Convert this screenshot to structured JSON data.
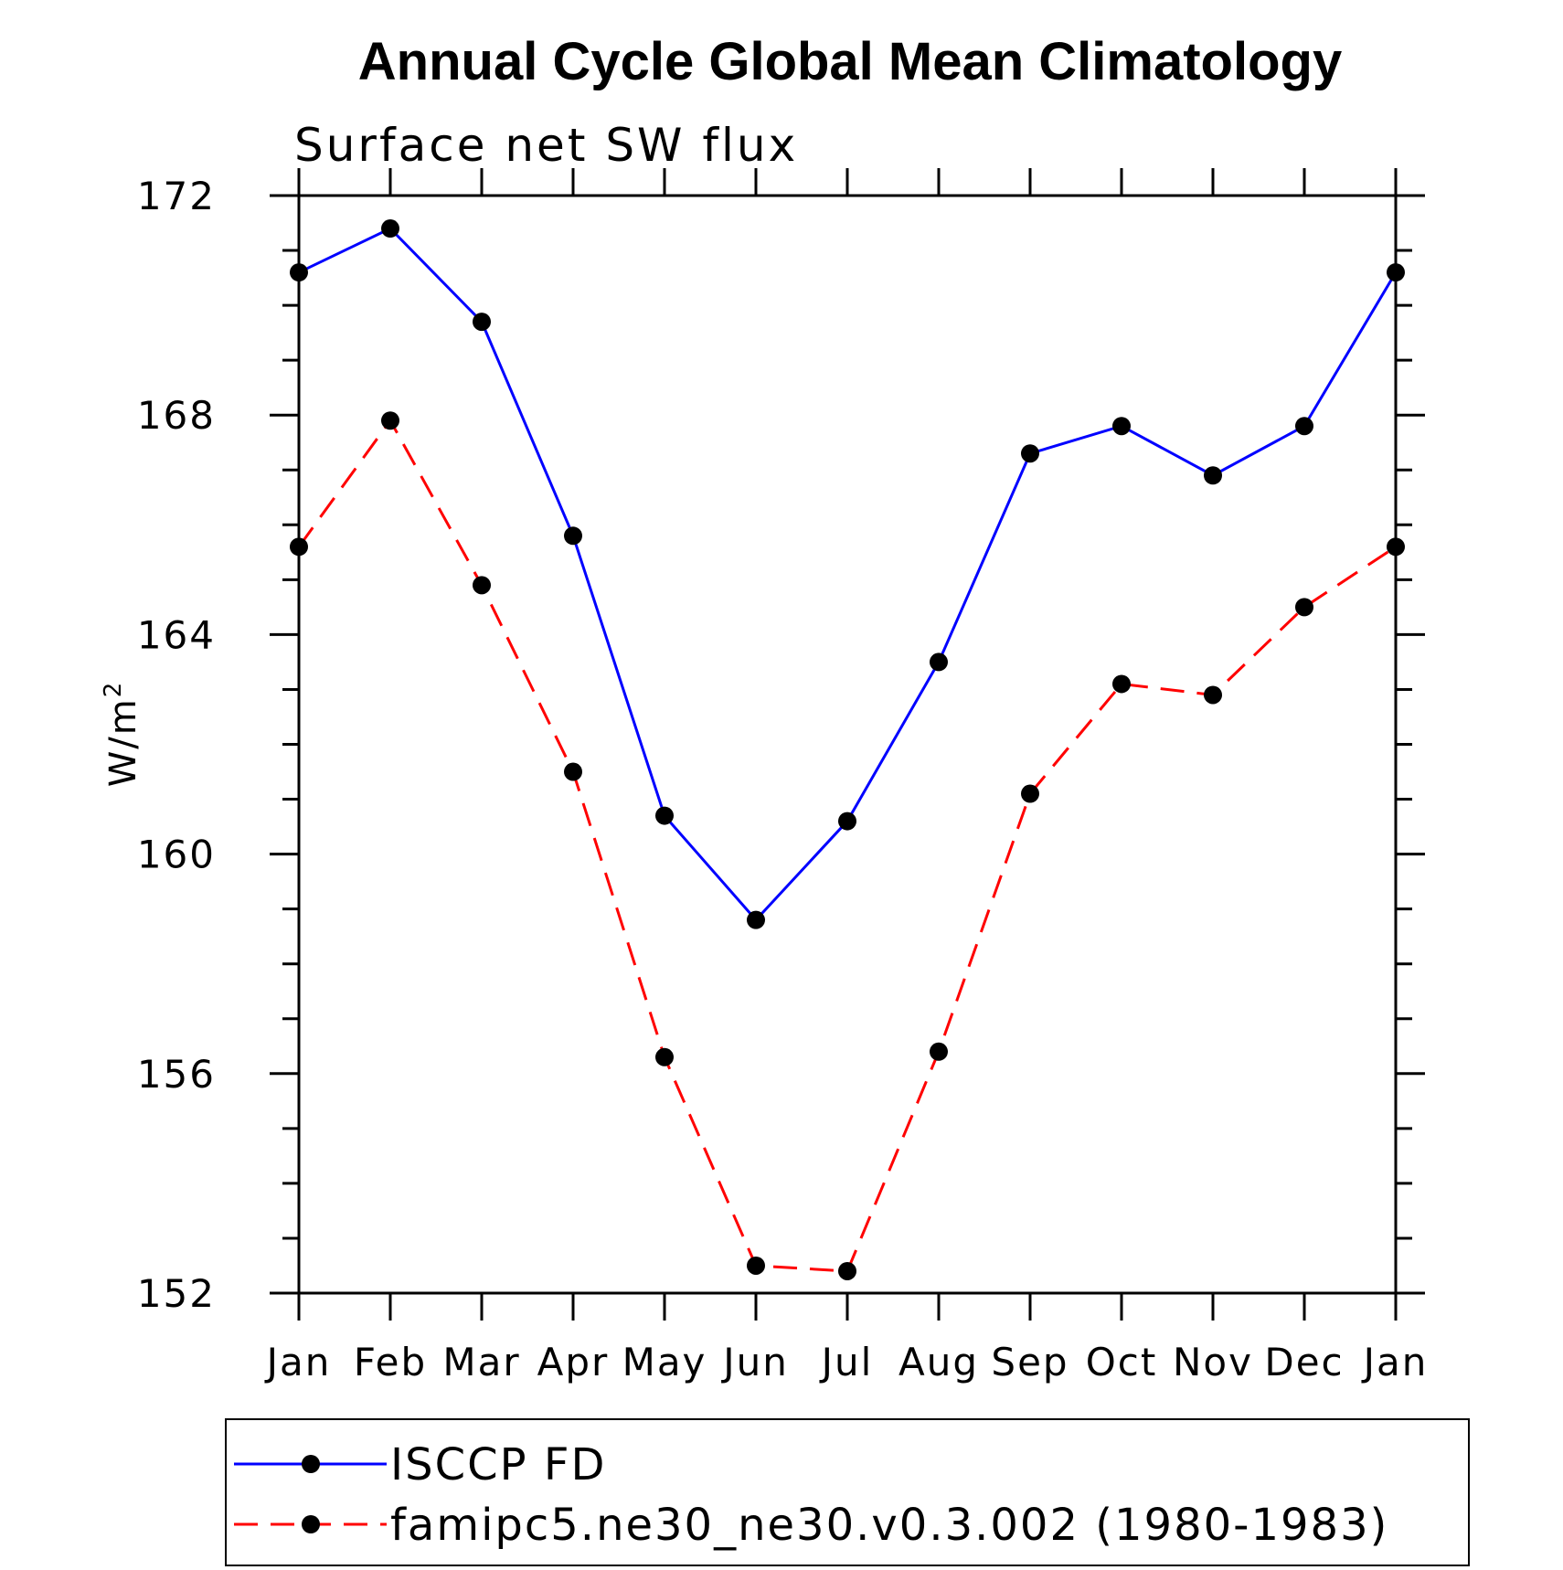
{
  "chart_data": {
    "type": "line",
    "title": "Annual Cycle Global Mean Climatology",
    "subtitle": "Surface net SW flux",
    "ylabel": "W/m",
    "ylabel_superscript": "2",
    "xlabel": "",
    "categories": [
      "Jan",
      "Feb",
      "Mar",
      "Apr",
      "May",
      "Jun",
      "Jul",
      "Aug",
      "Sep",
      "Oct",
      "Nov",
      "Dec",
      "Jan"
    ],
    "ylim": [
      152,
      172
    ],
    "yticks": [
      "172",
      "168",
      "164",
      "160",
      "156",
      "152"
    ],
    "grid": false,
    "legend_position": "bottom",
    "series": [
      {
        "name": "ISCCP FD",
        "color": "#0000ff",
        "line_style": "solid",
        "marker": "filled-circle",
        "values": [
          170.6,
          171.4,
          169.7,
          165.8,
          160.7,
          158.8,
          160.6,
          163.5,
          167.3,
          167.8,
          166.9,
          167.8,
          170.6
        ]
      },
      {
        "name": "famipc5.ne30_ne30.v0.3.002 (1980-1983)",
        "color": "#ff0000",
        "line_style": "dashed",
        "marker": "filled-circle",
        "values": [
          165.6,
          167.9,
          164.9,
          161.5,
          156.3,
          152.5,
          152.4,
          156.4,
          161.1,
          163.1,
          162.9,
          164.5,
          165.6
        ]
      }
    ]
  }
}
